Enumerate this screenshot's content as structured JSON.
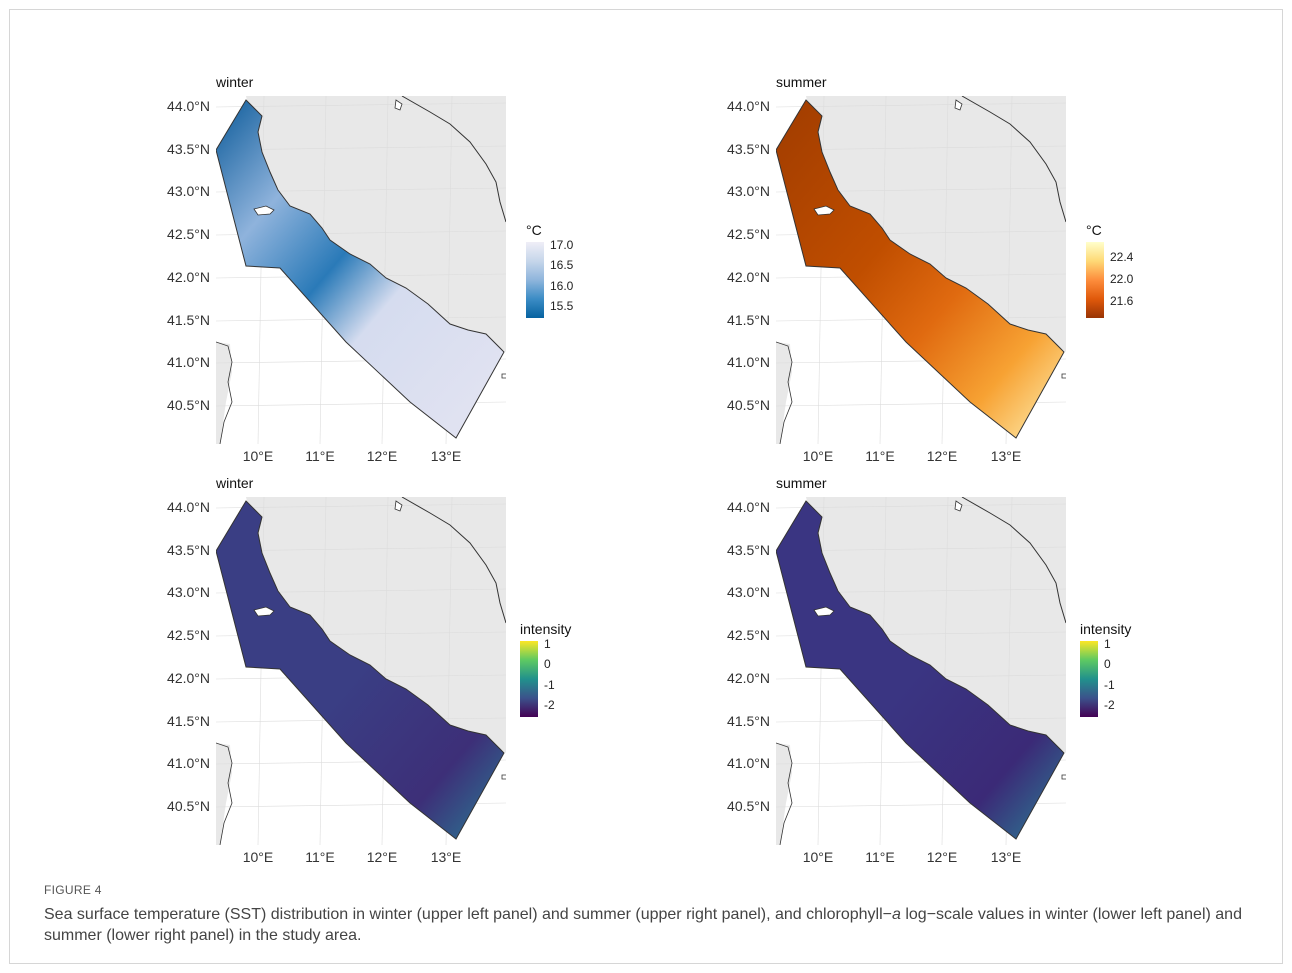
{
  "figure": {
    "label": "FIGURE 4",
    "caption_parts": [
      "Sea surface temperature (SST) distribution in winter (upper left panel) and summer (upper right panel), and chlorophyll−",
      "a",
      " log−scale values in winter (lower left panel) and summer (lower right panel) in the study area."
    ]
  },
  "axes": {
    "y_ticks": [
      "44.0°N",
      "43.5°N",
      "43.0°N",
      "42.5°N",
      "42.0°N",
      "41.5°N",
      "41.0°N",
      "40.5°N"
    ],
    "x_ticks": [
      "10°E",
      "11°E",
      "12°E",
      "13°E"
    ]
  },
  "panels": [
    {
      "id": "sst-winter",
      "title": "winter",
      "legend_title": "°C",
      "legend_ticks": [
        "17.0",
        "16.5",
        "16.0",
        "15.5"
      ],
      "palette": "blue",
      "sea_gradient": [
        "#e4e4f2",
        "#d5dcef",
        "#8fb3dc",
        "#2a7ab8",
        "#0b5a99"
      ]
    },
    {
      "id": "sst-summer",
      "title": "summer",
      "legend_title": "°C",
      "legend_ticks": [
        "22.4",
        "22.0",
        "21.6"
      ],
      "palette": "orange",
      "sea_gradient": [
        "#fff3b8",
        "#f7a233",
        "#e06a10",
        "#c04e00",
        "#a03c00"
      ]
    },
    {
      "id": "chl-winter",
      "title": "winter",
      "legend_title": "intensity",
      "legend_ticks": [
        "1",
        "0",
        "-1",
        "-2"
      ],
      "palette": "viridis",
      "sea_gradient": [
        "#3d2f78",
        "#3a3e84",
        "#2e6a8e",
        "#25a18a",
        "#b7de2d"
      ]
    },
    {
      "id": "chl-summer",
      "title": "summer",
      "legend_title": "intensity",
      "legend_ticks": [
        "1",
        "0",
        "-1",
        "-2"
      ],
      "palette": "viridis",
      "sea_gradient": [
        "#3b2a77",
        "#3a3582",
        "#2f6b8e",
        "#22a884",
        "#c8e020"
      ]
    }
  ],
  "colors": {
    "land": "#e8e8e8",
    "coast": "#333333",
    "grid": "#dcdcdc",
    "viridis": [
      "#fde725",
      "#5ec962",
      "#21918c",
      "#3b528b",
      "#440154"
    ],
    "blue": [
      "#efeef7",
      "#c6d6ea",
      "#8fb5dc",
      "#3b8cc5",
      "#0662a0"
    ],
    "orange": [
      "#ffffcc",
      "#fed976",
      "#fd8d3c",
      "#e0590b",
      "#993404"
    ]
  }
}
